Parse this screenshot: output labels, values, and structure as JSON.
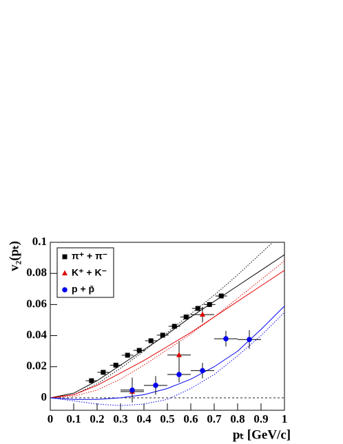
{
  "chart_data": {
    "type": "scatter",
    "x_label": "pₜ [GeV/c]",
    "y_label": "v₂(pₜ)",
    "xlim": [
      0,
      1
    ],
    "ylim": [
      -0.008,
      0.1
    ],
    "xticks": [
      0,
      0.1,
      0.2,
      0.3,
      0.4,
      0.5,
      0.6,
      0.7,
      0.8,
      0.9,
      1
    ],
    "yticks": [
      0,
      0.02,
      0.04,
      0.06,
      0.08,
      0.1
    ],
    "legend": "top-left",
    "series": [
      {
        "name": "π⁺ + π⁻",
        "color": "#000000",
        "marker": "square",
        "x": [
          0.176,
          0.226,
          0.28,
          0.33,
          0.38,
          0.43,
          0.48,
          0.53,
          0.58,
          0.63,
          0.68,
          0.73
        ],
        "values": [
          0.011,
          0.0164,
          0.021,
          0.0274,
          0.0305,
          0.0367,
          0.0403,
          0.046,
          0.052,
          0.0575,
          0.06,
          0.0655
        ],
        "xerr": [
          0.025,
          0.025,
          0.025,
          0.025,
          0.025,
          0.025,
          0.025,
          0.025,
          0.025,
          0.025,
          0.025,
          0.025
        ],
        "yerr": [
          0.001,
          0.001,
          0.001,
          0.001,
          0.001,
          0.001,
          0.001,
          0.001,
          0.001,
          0.001,
          0.001,
          0.001
        ]
      },
      {
        "name": "K⁺ + K⁻",
        "color": "#e00000",
        "marker": "triangle",
        "x": [
          0.35,
          0.55,
          0.65
        ],
        "values": [
          0.004,
          0.0275,
          0.0535
        ],
        "xerr": [
          0.05,
          0.05,
          0.05
        ],
        "yerr": [
          0.003,
          0.009,
          0.005
        ]
      },
      {
        "name": "p + p̄",
        "color": "#0000ee",
        "marker": "circle",
        "x": [
          0.35,
          0.45,
          0.55,
          0.65,
          0.75,
          0.85
        ],
        "values": [
          0.005,
          0.008,
          0.015,
          0.0175,
          0.038,
          0.0375
        ],
        "xerr": [
          0.05,
          0.05,
          0.05,
          0.05,
          0.05,
          0.05
        ],
        "yerr": [
          0.008,
          0.006,
          0.005,
          0.005,
          0.005,
          0.006
        ]
      }
    ],
    "curves": [
      {
        "color": "#000000",
        "dash": false,
        "x": [
          0,
          0.1,
          0.2,
          0.3,
          0.4,
          0.5,
          0.6,
          0.7,
          0.8,
          0.9,
          1
        ],
        "values": [
          0,
          0.003,
          0.011,
          0.021,
          0.031,
          0.041,
          0.052,
          0.062,
          0.072,
          0.082,
          0.092
        ]
      },
      {
        "color": "#000000",
        "dash": true,
        "x": [
          0,
          0.1,
          0.2,
          0.3,
          0.4,
          0.5,
          0.6,
          0.7,
          0.8,
          0.9,
          0.95
        ],
        "values": [
          0,
          0.002,
          0.009,
          0.019,
          0.03,
          0.042,
          0.054,
          0.066,
          0.079,
          0.093,
          0.1
        ]
      },
      {
        "color": "#e00000",
        "dash": false,
        "x": [
          0,
          0.1,
          0.2,
          0.3,
          0.4,
          0.5,
          0.6,
          0.7,
          0.8,
          0.9,
          1
        ],
        "values": [
          0,
          0.002,
          0.008,
          0.016,
          0.024,
          0.033,
          0.042,
          0.052,
          0.062,
          0.072,
          0.082
        ]
      },
      {
        "color": "#e00000",
        "dash": true,
        "x": [
          0,
          0.1,
          0.2,
          0.3,
          0.4,
          0.5,
          0.6,
          0.7,
          0.8,
          0.9,
          1
        ],
        "values": [
          0,
          0.001,
          0.005,
          0.012,
          0.021,
          0.031,
          0.041,
          0.052,
          0.064,
          0.076,
          0.088
        ]
      },
      {
        "color": "#0000ee",
        "dash": false,
        "x": [
          0,
          0.1,
          0.2,
          0.3,
          0.4,
          0.5,
          0.6,
          0.7,
          0.8,
          0.9,
          1
        ],
        "values": [
          0,
          -0.001,
          -0.001,
          0,
          0.002,
          0.006,
          0.012,
          0.02,
          0.03,
          0.044,
          0.059
        ]
      },
      {
        "color": "#0000ee",
        "dash": true,
        "x": [
          0,
          0.1,
          0.2,
          0.3,
          0.4,
          0.5,
          0.6,
          0.7,
          0.8,
          0.9,
          1
        ],
        "values": [
          0,
          -0.002,
          -0.004,
          -0.005,
          -0.004,
          -0.001,
          0.006,
          0.015,
          0.027,
          0.04,
          0.055
        ]
      }
    ]
  }
}
